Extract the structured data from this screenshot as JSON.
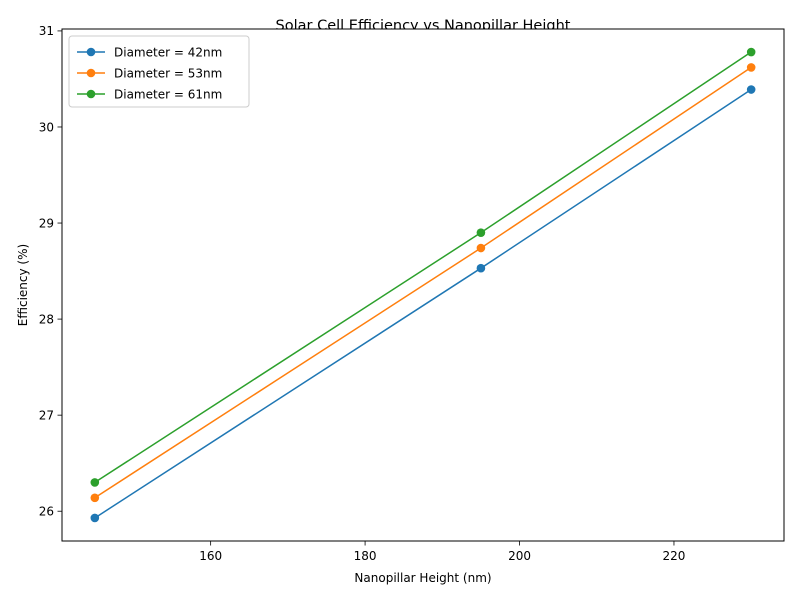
{
  "chart_data": {
    "type": "line",
    "title": "Solar Cell Efficiency vs Nanopillar Height",
    "xlabel": "Nanopillar Height (nm)",
    "ylabel": "Efficiency (%)",
    "x": [
      145,
      195,
      230
    ],
    "xlim": [
      140.75,
      234.25
    ],
    "ylim": [
      25.69,
      31.02
    ],
    "xticks": [
      160,
      180,
      200,
      220
    ],
    "yticks": [
      26,
      27,
      28,
      29,
      30,
      31
    ],
    "grid": false,
    "legend_position": "top-left",
    "series": [
      {
        "name": "Diameter = 42nm",
        "color": "#1f77b4",
        "values": [
          25.93,
          28.53,
          30.39
        ]
      },
      {
        "name": "Diameter = 53nm",
        "color": "#ff7f0e",
        "values": [
          26.14,
          28.74,
          30.62
        ]
      },
      {
        "name": "Diameter = 61nm",
        "color": "#2ca02c",
        "values": [
          26.3,
          28.9,
          30.78
        ]
      }
    ]
  }
}
